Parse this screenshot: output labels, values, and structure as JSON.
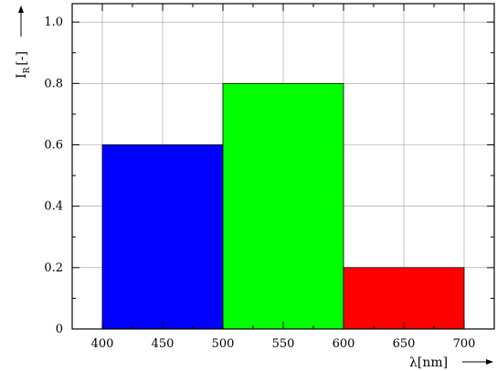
{
  "chart_data": {
    "type": "bar",
    "bars": [
      {
        "x_start": 400,
        "x_end": 500,
        "value": 0.6,
        "color": "#0000ff"
      },
      {
        "x_start": 500,
        "x_end": 600,
        "value": 0.8,
        "color": "#00ff00"
      },
      {
        "x_start": 600,
        "x_end": 700,
        "value": 0.2,
        "color": "#ff0000"
      }
    ],
    "xlabel": "λ[nm]",
    "ylabel": "I",
    "ylabel_subscript": "R",
    "ylabel_suffix": "[-]",
    "xlim": [
      375,
      725
    ],
    "ylim": [
      0,
      1.06
    ],
    "xticks": [
      400,
      450,
      500,
      550,
      600,
      650,
      700
    ],
    "xtick_labels": [
      "400",
      "450",
      "500",
      "550",
      "600",
      "650",
      "700"
    ],
    "yticks": [
      0,
      0.2,
      0.4,
      0.6,
      0.8,
      1.0
    ],
    "ytick_labels": [
      "0",
      "0.2",
      "0.4",
      "0.6",
      "0.8",
      "1.0"
    ],
    "grid": true
  }
}
